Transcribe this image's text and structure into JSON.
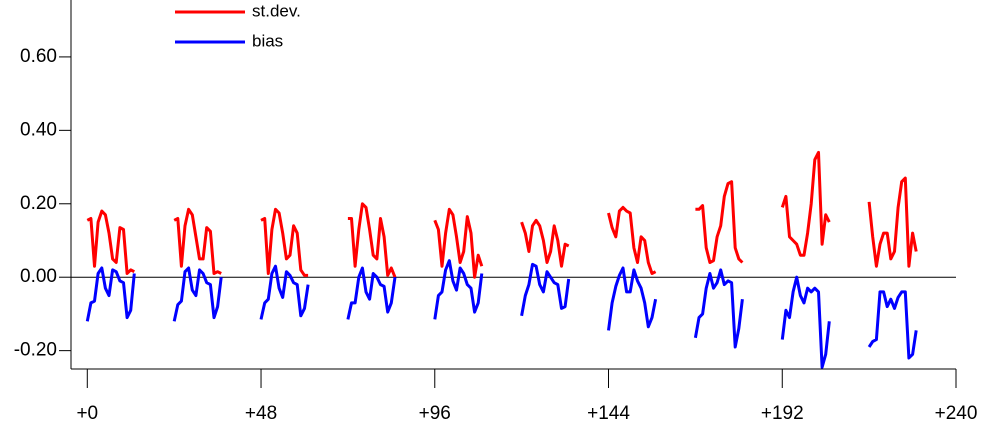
{
  "chart_data": {
    "type": "line",
    "x": [
      0,
      1,
      2,
      3,
      4,
      5,
      6,
      7,
      8,
      9,
      10,
      11,
      12,
      13,
      14,
      24,
      25,
      26,
      27,
      28,
      29,
      30,
      31,
      32,
      33,
      34,
      35,
      36,
      37,
      38,
      48,
      49,
      50,
      51,
      52,
      53,
      54,
      55,
      56,
      57,
      58,
      59,
      60,
      61,
      62,
      72,
      73,
      74,
      75,
      76,
      77,
      78,
      79,
      80,
      81,
      82,
      83,
      84,
      85,
      86,
      96,
      97,
      98,
      99,
      100,
      101,
      102,
      103,
      104,
      105,
      106,
      107,
      108,
      109,
      110,
      120,
      121,
      122,
      123,
      124,
      125,
      126,
      127,
      128,
      129,
      130,
      131,
      132,
      133,
      134,
      144,
      145,
      146,
      147,
      148,
      149,
      150,
      151,
      152,
      153,
      154,
      155,
      156,
      157,
      158,
      168,
      169,
      170,
      171,
      172,
      173,
      174,
      175,
      176,
      177,
      178,
      179,
      180,
      181,
      182,
      192,
      193,
      194,
      195,
      196,
      197,
      198,
      199,
      200,
      201,
      202,
      203,
      204,
      205,
      206,
      216,
      217,
      218,
      219,
      220,
      221,
      222,
      223,
      224,
      225,
      226,
      227,
      228,
      229
    ],
    "series": [
      {
        "name": "st.dev.",
        "color": "#ff0000",
        "values": [
          0.155,
          0.16,
          0.03,
          0.15,
          0.18,
          0.17,
          0.12,
          0.05,
          0.04,
          0.135,
          0.13,
          0.01,
          0.02,
          0.015,
          null,
          0.155,
          0.16,
          0.03,
          0.14,
          0.185,
          0.17,
          0.11,
          0.05,
          0.05,
          0.135,
          0.125,
          0.01,
          0.015,
          0.01,
          null,
          0.155,
          0.16,
          0.01,
          0.13,
          0.185,
          0.175,
          0.12,
          0.05,
          0.06,
          0.14,
          0.12,
          0.02,
          0.005,
          0.005,
          null,
          0.16,
          0.16,
          0.03,
          0.13,
          0.2,
          0.19,
          0.13,
          0.06,
          0.05,
          0.16,
          0.11,
          0.005,
          0.025,
          0.0,
          null,
          0.155,
          0.13,
          0.03,
          0.12,
          0.185,
          0.17,
          0.11,
          0.04,
          0.07,
          0.165,
          0.12,
          0.0,
          0.06,
          0.03,
          null,
          0.15,
          0.12,
          0.07,
          0.14,
          0.155,
          0.14,
          0.1,
          0.04,
          0.07,
          0.14,
          0.1,
          0.03,
          0.09,
          0.085,
          null,
          0.175,
          0.135,
          0.11,
          0.18,
          0.19,
          0.18,
          0.175,
          0.08,
          0.04,
          0.11,
          0.1,
          0.04,
          0.01,
          0.015,
          null,
          0.185,
          0.185,
          0.195,
          0.08,
          0.04,
          0.045,
          0.11,
          0.14,
          0.22,
          0.255,
          0.26,
          0.08,
          0.05,
          0.04,
          null,
          0.19,
          0.22,
          0.11,
          0.1,
          0.09,
          0.06,
          0.06,
          0.12,
          0.2,
          0.32,
          0.34,
          0.09,
          0.17,
          0.15,
          null,
          0.205,
          0.11,
          0.03,
          0.09,
          0.12,
          0.12,
          0.05,
          0.07,
          0.19,
          0.26,
          0.27,
          0.03,
          0.12,
          0.07
        ]
      },
      {
        "name": "bias",
        "color": "#0000ff",
        "values": [
          -0.12,
          -0.07,
          -0.065,
          0.01,
          0.025,
          -0.03,
          -0.05,
          0.02,
          0.015,
          -0.01,
          -0.015,
          -0.11,
          -0.09,
          0.01,
          null,
          -0.12,
          -0.075,
          -0.065,
          0.015,
          0.025,
          -0.035,
          -0.05,
          0.02,
          0.01,
          -0.015,
          -0.02,
          -0.11,
          -0.08,
          0.0,
          null,
          -0.115,
          -0.07,
          -0.06,
          0.01,
          0.03,
          -0.03,
          -0.055,
          0.015,
          0.005,
          -0.015,
          -0.02,
          -0.105,
          -0.085,
          -0.02,
          null,
          -0.115,
          -0.07,
          -0.07,
          0.0,
          0.025,
          -0.04,
          -0.06,
          0.01,
          0.0,
          -0.02,
          -0.025,
          -0.095,
          -0.07,
          0.0,
          null,
          -0.115,
          -0.05,
          -0.04,
          0.02,
          0.045,
          -0.01,
          -0.035,
          0.025,
          0.01,
          -0.02,
          -0.03,
          -0.095,
          -0.07,
          0.01,
          null,
          -0.105,
          -0.05,
          -0.02,
          0.035,
          0.03,
          -0.02,
          -0.04,
          0.015,
          0.0,
          -0.015,
          -0.02,
          -0.085,
          -0.08,
          -0.005,
          null,
          -0.145,
          -0.07,
          -0.025,
          0.005,
          0.025,
          -0.04,
          -0.04,
          0.02,
          -0.01,
          -0.03,
          -0.07,
          -0.135,
          -0.11,
          -0.06,
          null,
          -0.165,
          -0.11,
          -0.1,
          -0.03,
          0.01,
          -0.03,
          -0.015,
          0.02,
          -0.02,
          -0.01,
          -0.015,
          -0.19,
          -0.14,
          -0.06,
          null,
          -0.17,
          -0.09,
          -0.11,
          -0.04,
          0.0,
          -0.05,
          -0.07,
          -0.03,
          -0.04,
          -0.03,
          -0.04,
          -0.245,
          -0.21,
          -0.12,
          null,
          -0.19,
          -0.175,
          -0.17,
          -0.04,
          -0.04,
          -0.08,
          -0.06,
          -0.085,
          -0.055,
          -0.04,
          -0.04,
          -0.22,
          -0.21,
          -0.145
        ]
      }
    ],
    "xlim": [
      -4.5,
      240
    ],
    "xticks": [
      {
        "value": 0,
        "label": "+0"
      },
      {
        "value": 48,
        "label": "+48"
      },
      {
        "value": 96,
        "label": "+96"
      },
      {
        "value": 144,
        "label": "+144"
      },
      {
        "value": 192,
        "label": "+192"
      },
      {
        "value": 240,
        "label": "+240"
      }
    ],
    "ylim": [
      -0.25,
      0.755
    ],
    "yticks": [
      {
        "value": -0.2,
        "label": "-0.20"
      },
      {
        "value": 0,
        "label": "0.00"
      },
      {
        "value": 0.2,
        "label": "0.20"
      },
      {
        "value": 0.4,
        "label": "0.40"
      },
      {
        "value": 0.6,
        "label": "0.60"
      }
    ],
    "legend": "upper-left"
  }
}
